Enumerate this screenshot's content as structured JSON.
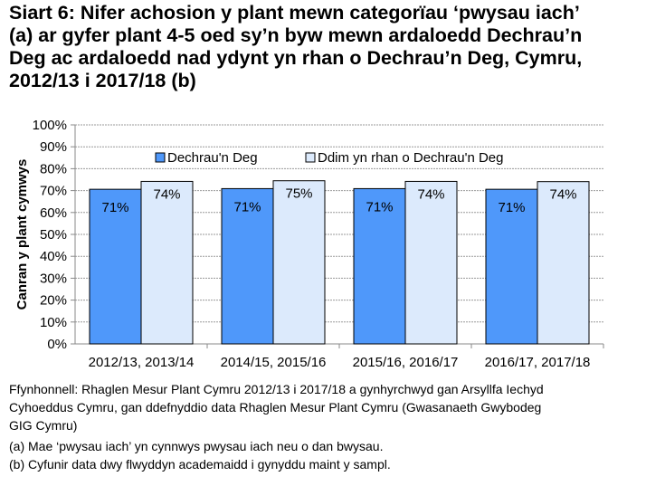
{
  "chart_data": {
    "type": "bar",
    "title_lines": [
      "Siart 6: Nifer achosion y plant mewn categorïau ‘pwysau iach’",
      "(a) ar gyfer plant 4-5 oed sy’n byw mewn ardaloedd Dechrau’n",
      "Deg ac ardaloedd nad ydynt yn rhan o Dechrau’n Deg, Cymru,",
      "2012/13 i 2017/18 (b)"
    ],
    "ylabel": "Canran y plant cymwys",
    "xlabel": "",
    "ylim": [
      0,
      100
    ],
    "yticks": [
      "0%",
      "10%",
      "20%",
      "30%",
      "40%",
      "50%",
      "60%",
      "70%",
      "80%",
      "90%",
      "100%"
    ],
    "grid": true,
    "legend_position": "top",
    "categories": [
      "2012/13, 2013/14",
      "2014/15, 2015/16",
      "2015/16, 2016/17",
      "2016/17, 2017/18"
    ],
    "series": [
      {
        "name": "Dechrau'n Deg",
        "color": "#4f98fa",
        "values": [
          70.6,
          70.9,
          70.9,
          70.6
        ],
        "labels": [
          "71%",
          "71%",
          "71%",
          "71%"
        ]
      },
      {
        "name": "Ddim yn rhan o Dechrau'n Deg",
        "color": "#dceafc",
        "values": [
          74.2,
          74.5,
          74.2,
          74.1
        ],
        "labels": [
          "74%",
          "75%",
          "74%",
          "74%"
        ]
      }
    ]
  },
  "notes": {
    "source_lines": [
      "Ffynhonnell: Rhaglen Mesur Plant Cymru 2012/13 i 2017/18 a gynhyrchwyd gan Arsyllfa Iechyd",
      "Cyhoeddus Cymru, gan ddefnyddio data Rhaglen Mesur Plant Cymru (Gwasanaeth Gwybodeg",
      "GIG Cymru)"
    ],
    "note_a": "(a) Mae ‘pwysau iach’ yn cynnwys pwysau iach neu o dan bwysau.",
    "note_b": "(b) Cyfunir data dwy flwyddyn academaidd i gynyddu maint y sampl."
  }
}
